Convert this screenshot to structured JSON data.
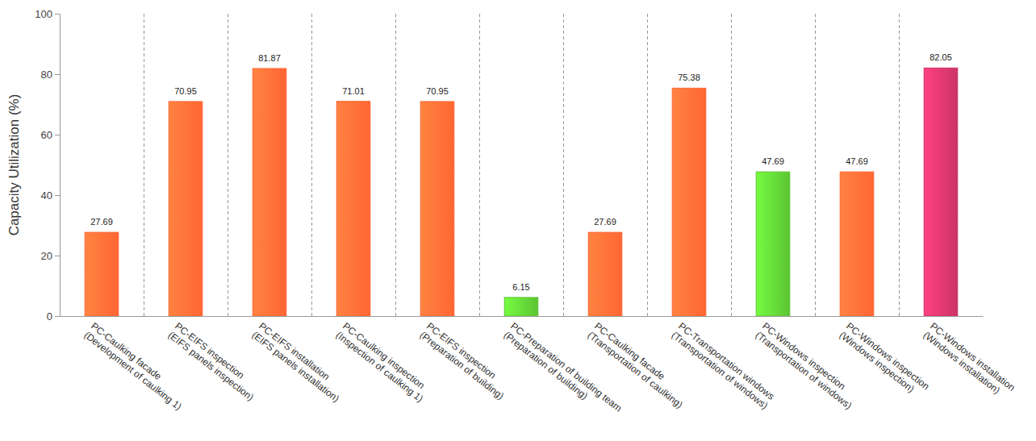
{
  "chart_data": {
    "type": "bar",
    "y_label": "Capacity Utilization (%)",
    "categories": [
      "PC-Caulking facade\n(Development of caulking 1)",
      "PC-EIFS inspection\n(EIFS panels inspection)",
      "PC-EIFS installation\n(EIFS panels installation)",
      "PC-Caulking inspection\n(Inspection of caulking 1)",
      "PC-EIFS inspection\n(Preparation of building)",
      "PC-Preparation of building team\n(Preparation of building)",
      "PC-Caulking facade\n(Transportation of caulking)",
      "PC-Transportation windows\n(Transportation of windows)",
      "PC-Windows inspection\n(Transportation of windows)",
      "PC-Windows inspection\n(Windows inspection)",
      "PC-Windows installation\n(Windows installation)"
    ],
    "values": [
      27.69,
      70.95,
      81.87,
      71.01,
      70.95,
      6.15,
      27.69,
      75.38,
      47.69,
      47.69,
      82.05
    ],
    "colors": [
      "#ff6633",
      "#ff6633",
      "#ff6633",
      "#ff6633",
      "#ff6633",
      "#5cc433",
      "#ff6633",
      "#ff6633",
      "#5cc433",
      "#ff6633",
      "#cc3366"
    ],
    "ylim": [
      0,
      100
    ],
    "yticks": [
      0,
      20,
      40,
      60,
      80,
      100
    ],
    "grid": true,
    "data_labels": true
  }
}
